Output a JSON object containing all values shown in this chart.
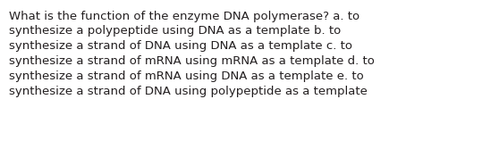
{
  "text": "What is the function of the enzyme DNA polymerase? a. to\nsynthesize a polypeptide using DNA as a template b. to\nsynthesize a strand of DNA using DNA as a template c. to\nsynthesize a strand of mRNA using mRNA as a template d. to\nsynthesize a strand of mRNA using DNA as a template e. to\nsynthesize a strand of DNA using polypeptide as a template",
  "background_color": "#ffffff",
  "text_color": "#231f20",
  "font_size": 9.5,
  "fig_width": 5.58,
  "fig_height": 1.67,
  "dpi": 100
}
